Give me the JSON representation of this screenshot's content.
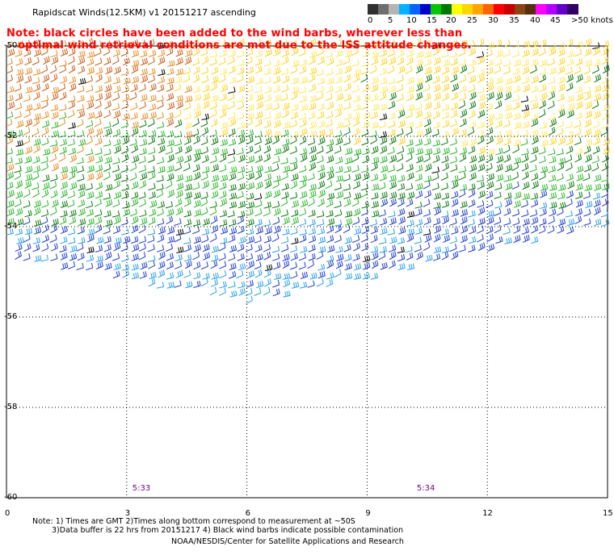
{
  "title": "Rapidscat Winds(12.5KM) v1 20151217 ascending",
  "note_line1": "Note: black circles have been added to the wind barbs, wherever less than",
  "note_line2": "optimal wind retrieval conditions are met due to the ISS attitude changes.",
  "legend": {
    "unit": "knots",
    "labels": [
      "0",
      "5",
      "10",
      "15",
      "20",
      "25",
      "30",
      "35",
      "40",
      "45",
      ">50 knots"
    ],
    "colors": [
      "#303030",
      "#6e6e6e",
      "#b4b4b4",
      "#00b4ff",
      "#0064ff",
      "#0000c8",
      "#00c800",
      "#007800",
      "#ffff00",
      "#ffd700",
      "#ffa500",
      "#ff6400",
      "#ff0000",
      "#c80000",
      "#8b4513",
      "#5a2d0c",
      "#ff00ff",
      "#b400ff",
      "#6400c8",
      "#320064"
    ]
  },
  "map": {
    "lat_labels": [
      "-50",
      "-52",
      "-54",
      "-56",
      "-58",
      "-60"
    ],
    "lon_labels": [
      "0",
      "3",
      "6",
      "9",
      "12",
      "15"
    ],
    "lat_range": [
      -60,
      -50
    ],
    "lon_range": [
      0,
      15
    ],
    "times": [
      {
        "label": "5:33",
        "lon": 3.1
      },
      {
        "label": "5:34",
        "lon": 10.2
      }
    ]
  },
  "footer": {
    "line1": "Note: 1) Times are GMT 2)Times along bottom correspond to measurement at ~50S",
    "line2": "3)Data buffer is 22 hrs from 20151217 4) Black wind barbs indicate possible contamination",
    "line3": "NOAA/NESDIS/Center for Satellite Applications and Research"
  },
  "colors": {
    "dark_orange": "#c85a14",
    "orange": "#e68a1e",
    "yellow": "#ffd21e",
    "light_yellow": "#ffe65a",
    "green": "#28b428",
    "dark_green": "#0a780a",
    "blue": "#1e3cc8",
    "cyan": "#28a0e6",
    "black": "#000000"
  }
}
